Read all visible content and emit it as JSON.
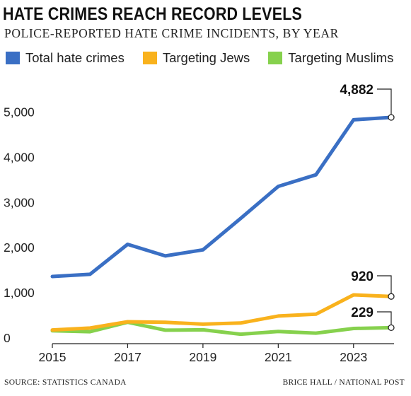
{
  "header": {
    "title": "HATE CRIMES REACH RECORD LEVELS",
    "subtitle": "POLICE-REPORTED HATE CRIME INCIDENTS, BY YEAR"
  },
  "footer": {
    "source": "SOURCE: STATISTICS CANADA",
    "credit": "BRICE HALL / NATIONAL POST"
  },
  "chart_data": {
    "type": "line",
    "title": "HATE CRIMES REACH RECORD LEVELS",
    "subtitle": "POLICE-REPORTED HATE CRIME INCIDENTS, BY YEAR",
    "xlabel": "",
    "ylabel": "",
    "x": [
      2015,
      2016,
      2017,
      2018,
      2019,
      2020,
      2021,
      2022,
      2023,
      2024
    ],
    "xlim": [
      2015,
      2024
    ],
    "ylim": [
      0,
      5000
    ],
    "x_ticks": [
      "2015",
      "2017",
      "2019",
      "2021",
      "2023"
    ],
    "y_ticks": [
      "0",
      "1,000",
      "2,000",
      "3,000",
      "4,000",
      "5,000"
    ],
    "grid": false,
    "legend_position": "top",
    "series": [
      {
        "name": "Total hate crimes",
        "color": "#3a6fc4",
        "values": [
          1362,
          1409,
          2073,
          1817,
          1951,
          2646,
          3355,
          3612,
          4828,
          4882
        ],
        "end_label": "4,882"
      },
      {
        "name": "Targeting Jews",
        "color": "#f9b21d",
        "values": [
          178,
          221,
          360,
          347,
          306,
          331,
          487,
          527,
          955,
          920
        ],
        "end_label": "920"
      },
      {
        "name": "Targeting Muslims",
        "color": "#86d14d",
        "values": [
          159,
          139,
          349,
          173,
          181,
          84,
          144,
          108,
          211,
          229
        ],
        "end_label": "229"
      }
    ]
  }
}
